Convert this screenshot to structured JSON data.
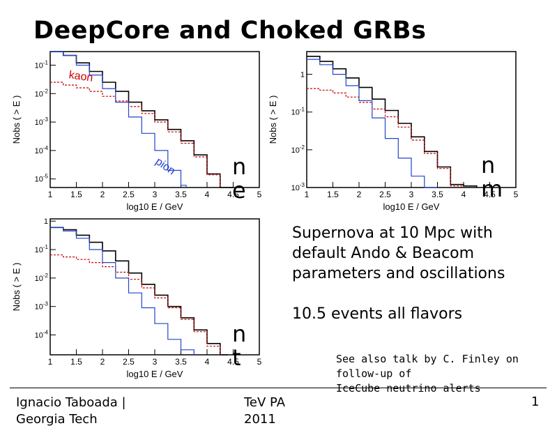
{
  "slide": {
    "title": "DeepCore and Choked GRBs",
    "info_lines": [
      "Supernova at 10 Mpc with",
      "default Ando & Beacom",
      "parameters and oscillations"
    ],
    "events_line": "10.5 events all flavors",
    "note_lines": [
      "See also talk by C. Finley on",
      "follow-up of",
      "IceCube neutrino alerts"
    ],
    "footer": {
      "author": "Ignacio Taboada |",
      "affiliation": "Georgia Tech",
      "venue": "TeV PA",
      "year": "2011",
      "page": "1"
    },
    "flavor_labels": {
      "e": {
        "nu": "n",
        "sub": "e"
      },
      "mu": {
        "nu": "n",
        "sub": "m"
      },
      "tau": {
        "nu": "n",
        "sub": "t"
      }
    }
  },
  "colors": {
    "total": "#000000",
    "kaon": "#cc0000",
    "pion": "#2244cc"
  },
  "chart_data": [
    {
      "type": "line",
      "flavor": "e",
      "xlabel": "log10 E / GeV",
      "ylabel": "Nobs ( > E )",
      "xlim": [
        1,
        5
      ],
      "ylim": [
        5e-06,
        0.3
      ],
      "log_y": true,
      "x_ticks": [
        "1",
        "1.5",
        "2",
        "2.5",
        "3",
        "3.5",
        "4",
        "4.5",
        "5"
      ],
      "y_ticks": [
        {
          "v": 1e-05,
          "l": "10-5"
        },
        {
          "v": 0.0001,
          "l": "10-4"
        },
        {
          "v": 0.001,
          "l": "10-3"
        },
        {
          "v": 0.01,
          "l": "10-2"
        },
        {
          "v": 0.1,
          "l": "10-1"
        }
      ],
      "annotations": [
        {
          "text": "kaon",
          "series": "kaon"
        },
        {
          "text": "pion",
          "series": "pion"
        }
      ],
      "series": [
        {
          "key": "total",
          "x": [
            1,
            1.25,
            1.5,
            1.75,
            2,
            2.25,
            2.5,
            2.75,
            3,
            3.25,
            3.5,
            3.75,
            4,
            4.25,
            4.5
          ],
          "y": [
            0.3,
            0.22,
            0.12,
            0.06,
            0.025,
            0.012,
            0.005,
            0.0025,
            0.0012,
            0.00055,
            0.00022,
            7e-05,
            1.5e-05,
            5e-06,
            5e-06
          ]
        },
        {
          "key": "kaon",
          "x": [
            1,
            1.25,
            1.5,
            1.75,
            2,
            2.25,
            2.5,
            2.75,
            3,
            3.25,
            3.5,
            3.75,
            4,
            4.25
          ],
          "y": [
            0.025,
            0.02,
            0.016,
            0.012,
            0.008,
            0.0055,
            0.0035,
            0.002,
            0.001,
            0.00045,
            0.00018,
            6e-05,
            1.4e-05,
            5e-06
          ]
        },
        {
          "key": "pion",
          "x": [
            1,
            1.25,
            1.5,
            1.75,
            2,
            2.25,
            2.5,
            2.75,
            3,
            3.25,
            3.5,
            3.6
          ],
          "y": [
            0.3,
            0.22,
            0.1,
            0.045,
            0.015,
            0.005,
            0.0015,
            0.0004,
            0.0001,
            2e-05,
            6e-06,
            5e-06
          ]
        }
      ]
    },
    {
      "type": "line",
      "flavor": "mu",
      "xlabel": "log10 E / GeV",
      "ylabel": "Nobs ( > E )",
      "xlim": [
        1,
        5
      ],
      "ylim": [
        0.001,
        4
      ],
      "log_y": true,
      "x_ticks": [
        "1",
        "1.5",
        "2",
        "2.5",
        "3",
        "3.5",
        "4",
        "4.5",
        "5"
      ],
      "y_ticks": [
        {
          "v": 0.001,
          "l": "10-3"
        },
        {
          "v": 0.01,
          "l": "10-2"
        },
        {
          "v": 0.1,
          "l": "10-1"
        },
        {
          "v": 1,
          "l": "1"
        }
      ],
      "annotations": [],
      "series": [
        {
          "key": "total",
          "x": [
            1,
            1.25,
            1.5,
            1.75,
            2,
            2.25,
            2.5,
            2.75,
            3,
            3.25,
            3.5,
            3.75,
            4,
            4.25
          ],
          "y": [
            3,
            2.2,
            1.4,
            0.8,
            0.45,
            0.22,
            0.11,
            0.05,
            0.022,
            0.009,
            0.0035,
            0.0012,
            0.0011,
            0.001
          ]
        },
        {
          "key": "kaon",
          "x": [
            1,
            1.25,
            1.5,
            1.75,
            2,
            2.25,
            2.5,
            2.75,
            3,
            3.25,
            3.5,
            3.75,
            4
          ],
          "y": [
            0.42,
            0.38,
            0.32,
            0.25,
            0.18,
            0.12,
            0.075,
            0.04,
            0.018,
            0.008,
            0.0032,
            0.0011,
            0.001
          ]
        },
        {
          "key": "pion",
          "x": [
            1,
            1.25,
            1.5,
            1.75,
            2,
            2.25,
            2.5,
            2.75,
            3,
            3.25,
            3.5
          ],
          "y": [
            2.5,
            1.8,
            1.0,
            0.5,
            0.2,
            0.07,
            0.02,
            0.006,
            0.002,
            0.001,
            0.001
          ]
        }
      ]
    },
    {
      "type": "line",
      "flavor": "tau",
      "xlabel": "log10 E / GeV",
      "ylabel": "Nobs ( > E )",
      "xlim": [
        1,
        5
      ],
      "ylim": [
        2e-05,
        1.2
      ],
      "log_y": true,
      "x_ticks": [
        "1",
        "1.5",
        "2",
        "2.5",
        "3",
        "3.5",
        "4",
        "4.5",
        "5"
      ],
      "y_ticks": [
        {
          "v": 0.0001,
          "l": "10-4"
        },
        {
          "v": 0.001,
          "l": "10-3"
        },
        {
          "v": 0.01,
          "l": "10-2"
        },
        {
          "v": 0.1,
          "l": "10-1"
        },
        {
          "v": 1,
          "l": "1"
        }
      ],
      "annotations": [],
      "series": [
        {
          "key": "total",
          "x": [
            1,
            1.25,
            1.5,
            1.75,
            2,
            2.25,
            2.5,
            2.75,
            3,
            3.25,
            3.5,
            3.75,
            4,
            4.25,
            4.4
          ],
          "y": [
            0.6,
            0.5,
            0.32,
            0.18,
            0.09,
            0.04,
            0.015,
            0.006,
            0.0025,
            0.001,
            0.0004,
            0.00015,
            5e-05,
            2e-05,
            2e-05
          ]
        },
        {
          "key": "kaon",
          "x": [
            1,
            1.25,
            1.5,
            1.75,
            2,
            2.25,
            2.5,
            2.75,
            3,
            3.25,
            3.5,
            3.75,
            4,
            4.25
          ],
          "y": [
            0.065,
            0.055,
            0.045,
            0.035,
            0.025,
            0.016,
            0.009,
            0.0045,
            0.002,
            0.0009,
            0.00035,
            0.00013,
            4e-05,
            2e-05
          ]
        },
        {
          "key": "pion",
          "x": [
            1,
            1.25,
            1.5,
            1.75,
            2,
            2.25,
            2.5,
            2.75,
            3,
            3.25,
            3.5,
            3.75
          ],
          "y": [
            0.6,
            0.45,
            0.25,
            0.1,
            0.035,
            0.01,
            0.003,
            0.0009,
            0.00025,
            7e-05,
            3e-05,
            2e-05
          ]
        }
      ]
    }
  ]
}
